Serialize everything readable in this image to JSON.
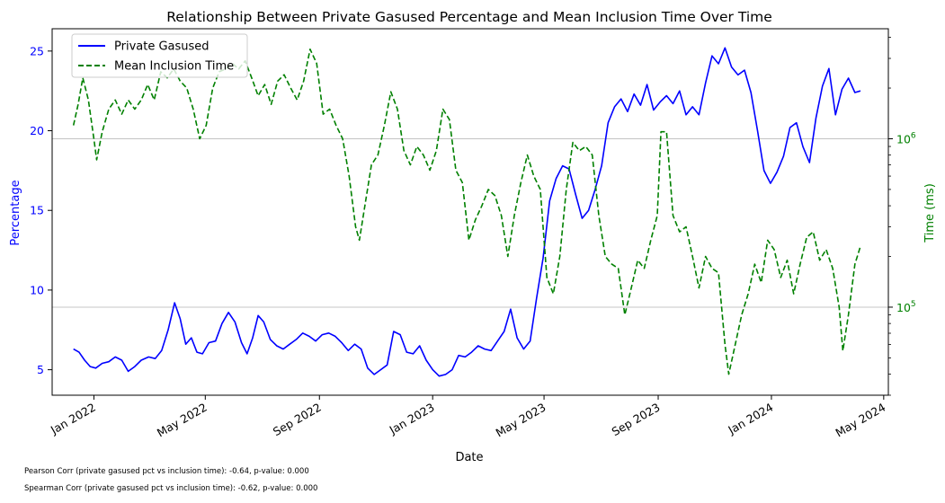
{
  "chart_data": {
    "type": "line",
    "title": "Relationship Between Private Gasused Percentage and Mean Inclusion Time Over Time",
    "xlabel": "Date",
    "ylabel_left": "Percentage",
    "ylabel_right": "Time (ms)",
    "x_ticks": [
      "Jan 2022",
      "May 2022",
      "Sep 2022",
      "Jan 2023",
      "May 2023",
      "Sep 2023",
      "Jan 2024",
      "May 2024"
    ],
    "x_tick_dates": [
      "2022-01-01",
      "2022-05-01",
      "2022-09-01",
      "2023-01-01",
      "2023-05-01",
      "2023-09-01",
      "2024-01-01",
      "2024-05-01"
    ],
    "xlim": [
      "2021-11-17",
      "2024-05-06"
    ],
    "y_left_ticks": [
      5,
      10,
      15,
      20,
      25
    ],
    "y_left_lim": [
      3.4,
      26.4
    ],
    "y_right_scale": "log",
    "y_right_ticks": [
      "10^5",
      "10^6"
    ],
    "y_right_lim": [
      30000,
      4500000
    ],
    "grid": "horizontal lines at right-axis major ticks",
    "legend_position": "top-left",
    "series": [
      {
        "name": "Private Gasused",
        "axis": "left",
        "color": "#0000ff",
        "linestyle": "solid",
        "points": [
          [
            "2021-12-10",
            6.3
          ],
          [
            "2021-12-16",
            6.1
          ],
          [
            "2021-12-22",
            5.6
          ],
          [
            "2021-12-28",
            5.2
          ],
          [
            "2022-01-03",
            5.1
          ],
          [
            "2022-01-10",
            5.4
          ],
          [
            "2022-01-17",
            5.5
          ],
          [
            "2022-01-24",
            5.8
          ],
          [
            "2022-01-31",
            5.6
          ],
          [
            "2022-02-07",
            4.9
          ],
          [
            "2022-02-14",
            5.2
          ],
          [
            "2022-02-21",
            5.6
          ],
          [
            "2022-03-01",
            5.8
          ],
          [
            "2022-03-08",
            5.7
          ],
          [
            "2022-03-15",
            6.2
          ],
          [
            "2022-03-22",
            7.5
          ],
          [
            "2022-03-29",
            9.2
          ],
          [
            "2022-04-04",
            8.2
          ],
          [
            "2022-04-10",
            6.6
          ],
          [
            "2022-04-16",
            7.0
          ],
          [
            "2022-04-22",
            6.1
          ],
          [
            "2022-04-28",
            6.0
          ],
          [
            "2022-05-05",
            6.7
          ],
          [
            "2022-05-12",
            6.8
          ],
          [
            "2022-05-19",
            7.9
          ],
          [
            "2022-05-26",
            8.6
          ],
          [
            "2022-06-02",
            8.0
          ],
          [
            "2022-06-09",
            6.7
          ],
          [
            "2022-06-15",
            6.0
          ],
          [
            "2022-06-21",
            7.0
          ],
          [
            "2022-06-27",
            8.4
          ],
          [
            "2022-07-03",
            8.0
          ],
          [
            "2022-07-10",
            6.9
          ],
          [
            "2022-07-17",
            6.5
          ],
          [
            "2022-07-24",
            6.3
          ],
          [
            "2022-07-31",
            6.6
          ],
          [
            "2022-08-07",
            6.9
          ],
          [
            "2022-08-14",
            7.3
          ],
          [
            "2022-08-21",
            7.1
          ],
          [
            "2022-08-28",
            6.8
          ],
          [
            "2022-09-04",
            7.2
          ],
          [
            "2022-09-11",
            7.3
          ],
          [
            "2022-09-18",
            7.1
          ],
          [
            "2022-09-25",
            6.7
          ],
          [
            "2022-10-02",
            6.2
          ],
          [
            "2022-10-09",
            6.6
          ],
          [
            "2022-10-16",
            6.3
          ],
          [
            "2022-10-23",
            5.1
          ],
          [
            "2022-10-30",
            4.7
          ],
          [
            "2022-11-06",
            5.0
          ],
          [
            "2022-11-13",
            5.3
          ],
          [
            "2022-11-20",
            7.4
          ],
          [
            "2022-11-27",
            7.2
          ],
          [
            "2022-12-04",
            6.1
          ],
          [
            "2022-12-11",
            6.0
          ],
          [
            "2022-12-18",
            6.5
          ],
          [
            "2022-12-25",
            5.6
          ],
          [
            "2023-01-01",
            5.0
          ],
          [
            "2023-01-08",
            4.6
          ],
          [
            "2023-01-15",
            4.7
          ],
          [
            "2023-01-22",
            5.0
          ],
          [
            "2023-01-29",
            5.9
          ],
          [
            "2023-02-05",
            5.8
          ],
          [
            "2023-02-12",
            6.1
          ],
          [
            "2023-02-19",
            6.5
          ],
          [
            "2023-02-26",
            6.3
          ],
          [
            "2023-03-05",
            6.2
          ],
          [
            "2023-03-12",
            6.8
          ],
          [
            "2023-03-19",
            7.4
          ],
          [
            "2023-03-26",
            8.8
          ],
          [
            "2023-04-02",
            7.0
          ],
          [
            "2023-04-09",
            6.3
          ],
          [
            "2023-04-16",
            6.8
          ],
          [
            "2023-04-23",
            9.5
          ],
          [
            "2023-04-30",
            12.0
          ],
          [
            "2023-05-07",
            15.6
          ],
          [
            "2023-05-14",
            17.0
          ],
          [
            "2023-05-21",
            17.8
          ],
          [
            "2023-05-28",
            17.6
          ],
          [
            "2023-06-04",
            16.0
          ],
          [
            "2023-06-11",
            14.5
          ],
          [
            "2023-06-18",
            15.0
          ],
          [
            "2023-06-25",
            16.3
          ],
          [
            "2023-07-02",
            17.8
          ],
          [
            "2023-07-09",
            20.5
          ],
          [
            "2023-07-16",
            21.5
          ],
          [
            "2023-07-23",
            22.0
          ],
          [
            "2023-07-30",
            21.2
          ],
          [
            "2023-08-06",
            22.3
          ],
          [
            "2023-08-13",
            21.6
          ],
          [
            "2023-08-20",
            22.9
          ],
          [
            "2023-08-27",
            21.3
          ],
          [
            "2023-09-03",
            21.8
          ],
          [
            "2023-09-10",
            22.2
          ],
          [
            "2023-09-17",
            21.7
          ],
          [
            "2023-09-24",
            22.5
          ],
          [
            "2023-10-01",
            21.0
          ],
          [
            "2023-10-08",
            21.5
          ],
          [
            "2023-10-15",
            21.0
          ],
          [
            "2023-10-22",
            23.0
          ],
          [
            "2023-10-29",
            24.7
          ],
          [
            "2023-11-05",
            24.2
          ],
          [
            "2023-11-12",
            25.2
          ],
          [
            "2023-11-19",
            24.0
          ],
          [
            "2023-11-26",
            23.5
          ],
          [
            "2023-12-03",
            23.8
          ],
          [
            "2023-12-10",
            22.4
          ],
          [
            "2023-12-17",
            20.0
          ],
          [
            "2023-12-24",
            17.5
          ],
          [
            "2023-12-31",
            16.7
          ],
          [
            "2024-01-07",
            17.4
          ],
          [
            "2024-01-14",
            18.4
          ],
          [
            "2024-01-21",
            20.2
          ],
          [
            "2024-01-28",
            20.5
          ],
          [
            "2024-02-04",
            19.0
          ],
          [
            "2024-02-11",
            18.0
          ],
          [
            "2024-02-18",
            20.8
          ],
          [
            "2024-02-25",
            22.8
          ],
          [
            "2024-03-03",
            23.9
          ],
          [
            "2024-03-10",
            21.0
          ],
          [
            "2024-03-17",
            22.6
          ],
          [
            "2024-03-24",
            23.3
          ],
          [
            "2024-03-31",
            22.4
          ],
          [
            "2024-04-06",
            22.5
          ]
        ]
      },
      {
        "name": "Mean Inclusion Time",
        "axis": "right",
        "color": "#008000",
        "linestyle": "dashed",
        "points": [
          [
            "2021-12-10",
            1200000
          ],
          [
            "2021-12-15",
            1600000
          ],
          [
            "2021-12-20",
            2300000
          ],
          [
            "2021-12-26",
            1700000
          ],
          [
            "2022-01-01",
            1000000
          ],
          [
            "2022-01-04",
            750000
          ],
          [
            "2022-01-10",
            1100000
          ],
          [
            "2022-01-17",
            1500000
          ],
          [
            "2022-01-24",
            1700000
          ],
          [
            "2022-01-31",
            1400000
          ],
          [
            "2022-02-07",
            1700000
          ],
          [
            "2022-02-14",
            1500000
          ],
          [
            "2022-02-21",
            1700000
          ],
          [
            "2022-02-28",
            2100000
          ],
          [
            "2022-03-07",
            1700000
          ],
          [
            "2022-03-14",
            2500000
          ],
          [
            "2022-03-21",
            2300000
          ],
          [
            "2022-03-28",
            2600000
          ],
          [
            "2022-04-04",
            2200000
          ],
          [
            "2022-04-11",
            2000000
          ],
          [
            "2022-04-18",
            1500000
          ],
          [
            "2022-04-25",
            1000000
          ],
          [
            "2022-05-02",
            1200000
          ],
          [
            "2022-05-09",
            2000000
          ],
          [
            "2022-05-16",
            2500000
          ],
          [
            "2022-05-23",
            2600000
          ],
          [
            "2022-05-30",
            2800000
          ],
          [
            "2022-06-06",
            2600000
          ],
          [
            "2022-06-13",
            2900000
          ],
          [
            "2022-06-20",
            2300000
          ],
          [
            "2022-06-27",
            1800000
          ],
          [
            "2022-07-04",
            2100000
          ],
          [
            "2022-07-11",
            1600000
          ],
          [
            "2022-07-18",
            2200000
          ],
          [
            "2022-07-25",
            2400000
          ],
          [
            "2022-08-01",
            2000000
          ],
          [
            "2022-08-08",
            1700000
          ],
          [
            "2022-08-15",
            2200000
          ],
          [
            "2022-08-22",
            3400000
          ],
          [
            "2022-08-29",
            2800000
          ],
          [
            "2022-09-05",
            1400000
          ],
          [
            "2022-09-12",
            1500000
          ],
          [
            "2022-09-19",
            1200000
          ],
          [
            "2022-09-26",
            1000000
          ],
          [
            "2022-10-03",
            600000
          ],
          [
            "2022-10-10",
            300000
          ],
          [
            "2022-10-14",
            250000
          ],
          [
            "2022-10-20",
            400000
          ],
          [
            "2022-10-27",
            700000
          ],
          [
            "2022-11-03",
            800000
          ],
          [
            "2022-11-10",
            1200000
          ],
          [
            "2022-11-17",
            1900000
          ],
          [
            "2022-11-24",
            1500000
          ],
          [
            "2022-12-01",
            850000
          ],
          [
            "2022-12-08",
            700000
          ],
          [
            "2022-12-15",
            900000
          ],
          [
            "2022-12-22",
            800000
          ],
          [
            "2022-12-29",
            650000
          ],
          [
            "2023-01-05",
            850000
          ],
          [
            "2023-01-12",
            1500000
          ],
          [
            "2023-01-19",
            1300000
          ],
          [
            "2023-01-26",
            650000
          ],
          [
            "2023-02-02",
            550000
          ],
          [
            "2023-02-09",
            250000
          ],
          [
            "2023-02-16",
            330000
          ],
          [
            "2023-02-23",
            400000
          ],
          [
            "2023-03-02",
            500000
          ],
          [
            "2023-03-09",
            460000
          ],
          [
            "2023-03-16",
            350000
          ],
          [
            "2023-03-23",
            200000
          ],
          [
            "2023-03-30",
            350000
          ],
          [
            "2023-04-06",
            550000
          ],
          [
            "2023-04-13",
            800000
          ],
          [
            "2023-04-20",
            600000
          ],
          [
            "2023-04-27",
            500000
          ],
          [
            "2023-05-04",
            150000
          ],
          [
            "2023-05-11",
            120000
          ],
          [
            "2023-05-18",
            200000
          ],
          [
            "2023-05-25",
            500000
          ],
          [
            "2023-06-01",
            950000
          ],
          [
            "2023-06-08",
            850000
          ],
          [
            "2023-06-15",
            900000
          ],
          [
            "2023-06-22",
            800000
          ],
          [
            "2023-06-29",
            350000
          ],
          [
            "2023-07-06",
            200000
          ],
          [
            "2023-07-13",
            180000
          ],
          [
            "2023-07-20",
            170000
          ],
          [
            "2023-07-27",
            90000
          ],
          [
            "2023-08-03",
            130000
          ],
          [
            "2023-08-10",
            190000
          ],
          [
            "2023-08-17",
            170000
          ],
          [
            "2023-08-24",
            250000
          ],
          [
            "2023-08-31",
            350000
          ],
          [
            "2023-09-04",
            1100000
          ],
          [
            "2023-09-10",
            1100000
          ],
          [
            "2023-09-17",
            350000
          ],
          [
            "2023-09-24",
            280000
          ],
          [
            "2023-10-01",
            300000
          ],
          [
            "2023-10-08",
            200000
          ],
          [
            "2023-10-15",
            130000
          ],
          [
            "2023-10-22",
            200000
          ],
          [
            "2023-10-29",
            170000
          ],
          [
            "2023-11-05",
            160000
          ],
          [
            "2023-11-12",
            60000
          ],
          [
            "2023-11-16",
            40000
          ],
          [
            "2023-11-23",
            60000
          ],
          [
            "2023-11-30",
            90000
          ],
          [
            "2023-12-07",
            120000
          ],
          [
            "2023-12-14",
            180000
          ],
          [
            "2023-12-21",
            140000
          ],
          [
            "2023-12-28",
            250000
          ],
          [
            "2024-01-04",
            220000
          ],
          [
            "2024-01-11",
            150000
          ],
          [
            "2024-01-18",
            190000
          ],
          [
            "2024-01-25",
            120000
          ],
          [
            "2024-02-01",
            180000
          ],
          [
            "2024-02-08",
            260000
          ],
          [
            "2024-02-15",
            280000
          ],
          [
            "2024-02-22",
            190000
          ],
          [
            "2024-02-29",
            220000
          ],
          [
            "2024-03-07",
            170000
          ],
          [
            "2024-03-14",
            100000
          ],
          [
            "2024-03-18",
            55000
          ],
          [
            "2024-03-24",
            90000
          ],
          [
            "2024-03-31",
            180000
          ],
          [
            "2024-04-06",
            230000
          ]
        ]
      }
    ]
  },
  "footnotes": {
    "pearson": "Pearson Corr (private gasused pct vs inclusion time): -0.64, p-value: 0.000",
    "spearman": "Spearman Corr (private gasused pct vs inclusion time): -0.62, p-value: 0.000"
  }
}
